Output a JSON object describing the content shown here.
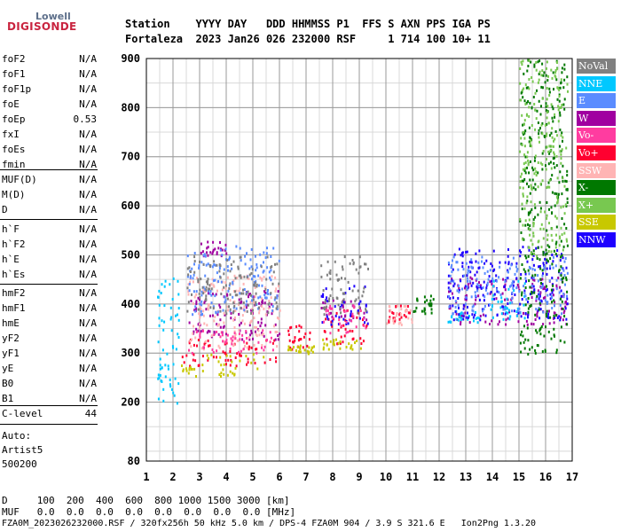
{
  "logo": {
    "top": "Lowell",
    "bottom": "DIGISONDE"
  },
  "header": {
    "line1": "Station    YYYY DAY   DDD HHMMSS P1  FFS S AXN PPS IGA PS",
    "line2": "Fortaleza  2023 Jan26 026 232000 RSF     1 714 100 10+ 11"
  },
  "params_group1": [
    {
      "name": "foF2",
      "value": "N/A"
    },
    {
      "name": "foF1",
      "value": "N/A"
    },
    {
      "name": "foF1p",
      "value": "N/A"
    },
    {
      "name": "foE",
      "value": "N/A"
    },
    {
      "name": "foEp",
      "value": "0.53"
    },
    {
      "name": "fxI",
      "value": "N/A"
    },
    {
      "name": "foEs",
      "value": "N/A"
    },
    {
      "name": "fmin",
      "value": "N/A"
    }
  ],
  "params_group2": [
    {
      "name": "MUF(D)",
      "value": "N/A"
    },
    {
      "name": "M(D)",
      "value": "N/A"
    },
    {
      "name": "D",
      "value": "N/A"
    }
  ],
  "params_group3": [
    {
      "name": "h`F",
      "value": "N/A"
    },
    {
      "name": "h`F2",
      "value": "N/A"
    },
    {
      "name": "h`E",
      "value": "N/A"
    },
    {
      "name": "h`Es",
      "value": "N/A"
    }
  ],
  "params_group4": [
    {
      "name": "hmF2",
      "value": "N/A"
    },
    {
      "name": "hmF1",
      "value": "N/A"
    },
    {
      "name": "hmE",
      "value": "N/A"
    },
    {
      "name": "yF2",
      "value": "N/A"
    },
    {
      "name": "yF1",
      "value": "N/A"
    },
    {
      "name": "yE",
      "value": "N/A"
    },
    {
      "name": "B0",
      "value": "N/A"
    },
    {
      "name": "B1",
      "value": "N/A"
    }
  ],
  "clevel": {
    "name": "C-level",
    "value": "44"
  },
  "auto": {
    "line1": "Auto:",
    "line2": "Artist5",
    "line3": "500200"
  },
  "legend": [
    {
      "label": "NoVal",
      "color": "#808080",
      "text": "#ffffff"
    },
    {
      "label": "NNE",
      "color": "#00c8ff",
      "text": "#ffffff"
    },
    {
      "label": "E",
      "color": "#5a8cff",
      "text": "#ffffff"
    },
    {
      "label": "W",
      "color": "#a000a0",
      "text": "#ffffff"
    },
    {
      "label": "Vo-",
      "color": "#ff3ca0",
      "text": "#ffffff"
    },
    {
      "label": "Vo+",
      "color": "#ff0030",
      "text": "#ffffff"
    },
    {
      "label": "SSW",
      "color": "#ffb4b4",
      "text": "#ffffff"
    },
    {
      "label": "X-",
      "color": "#007800",
      "text": "#ffffff"
    },
    {
      "label": "X+",
      "color": "#78c850",
      "text": "#ffffff"
    },
    {
      "label": "SSE",
      "color": "#c8c800",
      "text": "#ffffff"
    },
    {
      "label": "NNW",
      "color": "#1e00ff",
      "text": "#ffffff"
    }
  ],
  "footer": {
    "line1": "D     100  200  400  600  800 1000 1500 3000 [km]",
    "line2": "MUF   0.0  0.0  0.0  0.0  0.0  0.0  0.0  0.0 [MHz]",
    "line3": "FZA0M_2023026232000.RSF / 320fx256h 50 kHz 5.0 km / DPS-4 FZA0M 904 / 3.9 S 321.6 E   Ion2Png 1.3.20"
  },
  "chart_data": {
    "type": "scatter",
    "xlim": [
      1,
      17
    ],
    "ylim": [
      80,
      900
    ],
    "x_ticks": [
      "1",
      "2",
      "3",
      "4",
      "5",
      "6",
      "7",
      "8",
      "9",
      "10",
      "11",
      "12",
      "13",
      "14",
      "15",
      "16",
      "17"
    ],
    "y_ticks": [
      "80",
      "200",
      "300",
      "400",
      "500",
      "600",
      "700",
      "800",
      "900"
    ],
    "grid": true,
    "series": [
      {
        "name": "Vo+",
        "color": "#ff0030",
        "clusters": [
          {
            "x": [
              2.3,
              6.0
            ],
            "y": [
              275,
              330
            ]
          },
          {
            "x": [
              6.3,
              7.2
            ],
            "y": [
              310,
              360
            ]
          },
          {
            "x": [
              7.6,
              9.3
            ],
            "y": [
              320,
              390
            ]
          },
          {
            "x": [
              10.0,
              10.9
            ],
            "y": [
              360,
              400
            ]
          }
        ]
      },
      {
        "name": "SSE",
        "color": "#c8c800",
        "clusters": [
          {
            "x": [
              2.3,
              5.5
            ],
            "y": [
              255,
              300
            ]
          },
          {
            "x": [
              6.3,
              7.3
            ],
            "y": [
              300,
              320
            ]
          },
          {
            "x": [
              7.6,
              9.3
            ],
            "y": [
              310,
              330
            ]
          }
        ]
      },
      {
        "name": "W",
        "color": "#a000a0",
        "clusters": [
          {
            "x": [
              2.5,
              6.0
            ],
            "y": [
              330,
              430
            ]
          },
          {
            "x": [
              3.0,
              4.0
            ],
            "y": [
              500,
              530
            ]
          },
          {
            "x": [
              7.5,
              9.3
            ],
            "y": [
              370,
              410
            ]
          },
          {
            "x": [
              12.3,
              16.8
            ],
            "y": [
              360,
              460
            ]
          }
        ]
      },
      {
        "name": "NNE",
        "color": "#00c8ff",
        "clusters": [
          {
            "x": [
              1.4,
              2.2
            ],
            "y": [
              200,
              460
            ]
          },
          {
            "x": [
              12.3,
              13.5
            ],
            "y": [
              365,
              390
            ]
          },
          {
            "x": [
              13.8,
              15.2
            ],
            "y": [
              360,
              450
            ]
          }
        ]
      },
      {
        "name": "NNW",
        "color": "#1e00ff",
        "clusters": [
          {
            "x": [
              7.5,
              9.3
            ],
            "y": [
              360,
              440
            ]
          },
          {
            "x": [
              12.3,
              16.8
            ],
            "y": [
              370,
              520
            ]
          }
        ]
      },
      {
        "name": "SSW",
        "color": "#ffb4b4",
        "clusters": [
          {
            "x": [
              2.5,
              6.0
            ],
            "y": [
              310,
              460
            ]
          },
          {
            "x": [
              10.0,
              11.0
            ],
            "y": [
              360,
              400
            ]
          }
        ]
      },
      {
        "name": "Vo-",
        "color": "#ff3ca0",
        "clusters": [
          {
            "x": [
              2.5,
              5.8
            ],
            "y": [
              300,
              350
            ]
          },
          {
            "x": [
              7.6,
              9.3
            ],
            "y": [
              340,
              400
            ]
          }
        ]
      },
      {
        "name": "E",
        "color": "#5a8cff",
        "clusters": [
          {
            "x": [
              2.5,
              6.0
            ],
            "y": [
              380,
              520
            ]
          },
          {
            "x": [
              12.3,
              16.8
            ],
            "y": [
              380,
              500
            ]
          }
        ]
      },
      {
        "name": "X-",
        "color": "#007800",
        "clusters": [
          {
            "x": [
              11.0,
              11.8
            ],
            "y": [
              380,
              420
            ]
          },
          {
            "x": [
              15.0,
              16.8
            ],
            "y": [
              300,
              900
            ]
          }
        ]
      },
      {
        "name": "X+",
        "color": "#78c850",
        "clusters": [
          {
            "x": [
              15.0,
              16.8
            ],
            "y": [
              500,
              900
            ]
          }
        ]
      },
      {
        "name": "NoVal",
        "color": "#808080",
        "clusters": [
          {
            "x": [
              2.5,
              6.0
            ],
            "y": [
              380,
              500
            ]
          },
          {
            "x": [
              7.5,
              9.3
            ],
            "y": [
              380,
              500
            ]
          }
        ]
      }
    ]
  }
}
